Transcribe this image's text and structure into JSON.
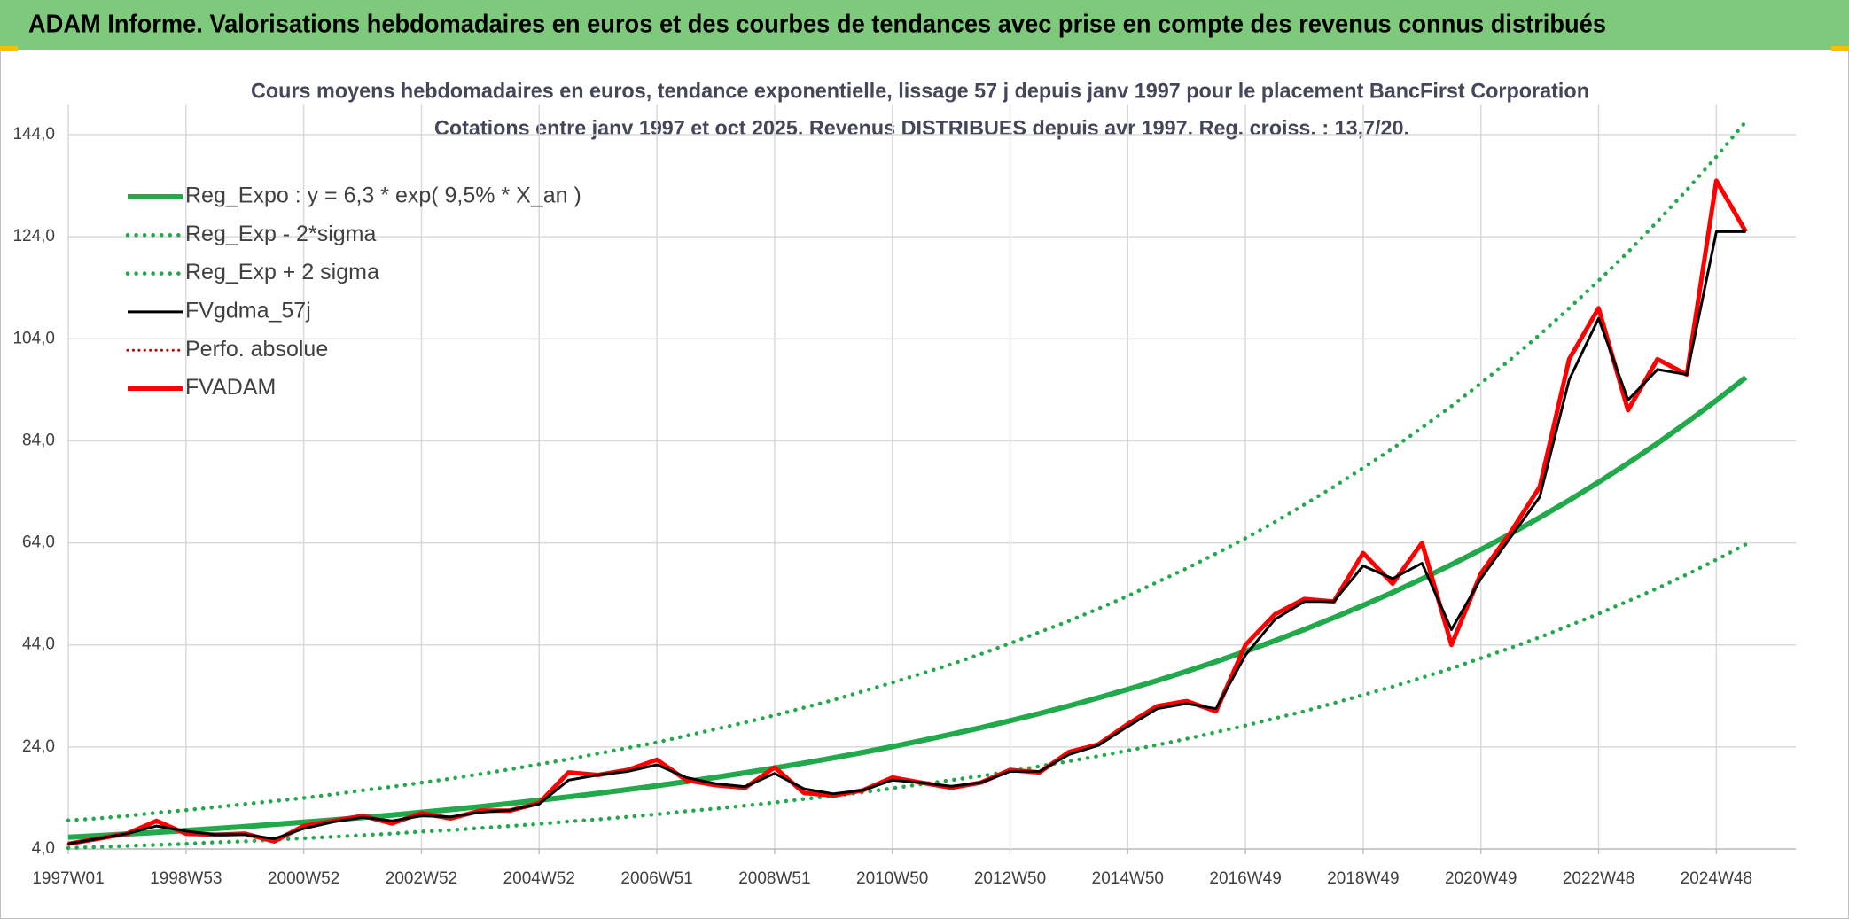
{
  "header": {
    "title": "ADAM Informe. Valorisations hebdomadaires en euros et des courbes de tendances avec prise en compte des revenus connus distribués"
  },
  "chart_data": {
    "type": "line",
    "title": "Cours moyens hebdomadaires en euros, tendance exponentielle, lissage 57 j depuis janv 1997 pour le placement BancFirst Corporation",
    "subtitle": "Cotations entre janv 1997 et oct 2025. Revenus DISTRIBUES depuis avr 1997. Reg. croiss. : 13,7/20.",
    "categories": [
      "1997W01",
      null,
      null,
      null,
      "1998W53",
      null,
      null,
      null,
      "2000W52",
      null,
      null,
      null,
      "2002W52",
      null,
      null,
      null,
      "2004W52",
      null,
      null,
      null,
      "2006W51",
      null,
      null,
      null,
      "2008W51",
      null,
      null,
      null,
      "2010W50",
      null,
      null,
      null,
      "2012W50",
      null,
      null,
      null,
      "2014W50",
      null,
      null,
      null,
      "2016W49",
      null,
      null,
      null,
      "2018W49",
      null,
      null,
      null,
      "2020W49",
      null,
      null,
      null,
      "2022W48",
      null,
      null,
      null,
      "2024W48",
      null
    ],
    "ylim": [
      4,
      150
    ],
    "yticks": [
      {
        "value": 4,
        "label": "4,0"
      },
      {
        "value": 24,
        "label": "24,0"
      },
      {
        "value": 44,
        "label": "44,0"
      },
      {
        "value": 64,
        "label": "64,0"
      },
      {
        "value": 84,
        "label": "84,0"
      },
      {
        "value": 104,
        "label": "104,0"
      },
      {
        "value": 124,
        "label": "124,0"
      },
      {
        "value": 144,
        "label": "144,0"
      }
    ],
    "grid": true,
    "legend": "upper left",
    "series": [
      {
        "name": "Reg_Expo : y = 6,3 * exp( 9,5% *  X_an )",
        "color": "#22a94c",
        "style": "solid",
        "values": [
          6.3,
          6.61,
          6.93,
          7.27,
          7.63,
          8.0,
          8.39,
          8.81,
          9.24,
          9.69,
          10.17,
          10.66,
          11.19,
          11.73,
          12.31,
          12.91,
          13.55,
          14.21,
          14.91,
          15.64,
          16.41,
          17.21,
          18.06,
          18.94,
          19.87,
          20.84,
          21.86,
          22.94,
          24.06,
          25.24,
          26.48,
          27.77,
          29.14,
          30.56,
          32.06,
          33.63,
          35.28,
          37.01,
          38.83,
          40.73,
          42.73,
          44.83,
          47.03,
          49.33,
          51.75,
          54.29,
          56.95,
          59.74,
          62.67,
          65.75,
          68.97,
          72.35,
          75.9,
          79.63,
          83.53,
          87.63,
          91.93,
          96.44
        ]
      },
      {
        "name": "Reg_Exp - 2*sigma",
        "color": "#22a94c",
        "style": "dotted",
        "values": [
          4.2,
          4.4,
          4.6,
          4.8,
          5.0,
          5.3,
          5.5,
          5.8,
          6.1,
          6.4,
          6.7,
          7.0,
          7.4,
          7.7,
          8.1,
          8.5,
          8.9,
          9.4,
          9.8,
          10.3,
          10.8,
          11.4,
          11.9,
          12.5,
          13.1,
          13.8,
          14.4,
          15.1,
          15.9,
          16.7,
          17.5,
          18.3,
          19.2,
          20.2,
          21.2,
          22.2,
          23.3,
          24.4,
          25.6,
          26.9,
          28.2,
          29.6,
          31.0,
          32.6,
          34.2,
          35.8,
          37.6,
          39.4,
          41.4,
          43.4,
          45.5,
          47.8,
          50.1,
          52.6,
          55.1,
          57.8,
          60.7,
          63.7
        ]
      },
      {
        "name": "Reg_Exp + 2 sigma",
        "color": "#22a94c",
        "style": "dotted",
        "values": [
          9.6,
          10.0,
          10.5,
          11.1,
          11.6,
          12.2,
          12.8,
          13.4,
          14.0,
          14.7,
          15.5,
          16.2,
          17.0,
          17.8,
          18.7,
          19.6,
          20.6,
          21.6,
          22.7,
          23.8,
          24.9,
          26.2,
          27.5,
          28.8,
          30.2,
          31.7,
          33.2,
          34.9,
          36.6,
          38.4,
          40.2,
          42.2,
          44.3,
          46.5,
          48.7,
          51.1,
          53.6,
          56.3,
          59.0,
          61.9,
          64.9,
          68.1,
          71.5,
          75.0,
          78.7,
          82.5,
          86.6,
          90.8,
          95.3,
          99.9,
          104.8,
          110.0,
          115.4,
          121.0,
          127.0,
          133.2,
          139.7,
          146.6
        ]
      },
      {
        "name": "FVgdma_57j",
        "color": "#000000",
        "style": "solid",
        "values": [
          5,
          6,
          7,
          8.5,
          7.5,
          6.8,
          6.8,
          6,
          8,
          9.3,
          10.2,
          9.5,
          10.5,
          10.3,
          11.2,
          11.6,
          12.8,
          17.5,
          18.5,
          19.2,
          20.5,
          18,
          16.8,
          16.2,
          18.8,
          15.8,
          14.8,
          15.5,
          17.5,
          17,
          16.3,
          17,
          19.2,
          19.2,
          22.5,
          24.3,
          28,
          31.5,
          32.5,
          31.5,
          42,
          49,
          52.5,
          52.5,
          59.5,
          57,
          60,
          47,
          57,
          65,
          73,
          96,
          108,
          92,
          98,
          97,
          125,
          125
        ]
      },
      {
        "name": "Perfo. absolue",
        "color": "#c00000",
        "style": "dotted",
        "values": [
          5,
          6,
          7,
          9.5,
          7,
          6.8,
          7,
          5.5,
          8.5,
          9.5,
          10.5,
          9,
          11,
          10,
          11.5,
          11.5,
          13,
          19,
          18.5,
          19.5,
          21.5,
          17.5,
          16.5,
          16,
          20,
          15,
          14.5,
          15.5,
          18,
          17,
          16,
          17,
          19.5,
          19,
          23,
          24.5,
          28.5,
          32,
          33,
          31,
          44,
          50,
          53,
          52.5,
          62,
          56,
          64,
          44,
          58,
          66,
          75,
          100,
          110,
          90,
          100,
          97,
          135,
          125
        ]
      },
      {
        "name": "FVADAM",
        "color": "#ff0000",
        "style": "solid",
        "values": [
          5,
          6,
          7,
          9.5,
          7,
          6.8,
          7,
          5.5,
          8.5,
          9.5,
          10.5,
          9,
          11,
          10,
          11.5,
          11.5,
          13,
          19,
          18.5,
          19.5,
          21.5,
          17.5,
          16.5,
          16,
          20,
          15,
          14.5,
          15.5,
          18,
          17,
          16,
          17,
          19.5,
          19,
          23,
          24.5,
          28.5,
          32,
          33,
          31,
          44,
          50,
          53,
          52.5,
          62,
          56,
          64,
          44,
          58,
          66,
          75,
          100,
          110,
          90,
          100,
          97,
          135,
          125
        ]
      }
    ]
  }
}
